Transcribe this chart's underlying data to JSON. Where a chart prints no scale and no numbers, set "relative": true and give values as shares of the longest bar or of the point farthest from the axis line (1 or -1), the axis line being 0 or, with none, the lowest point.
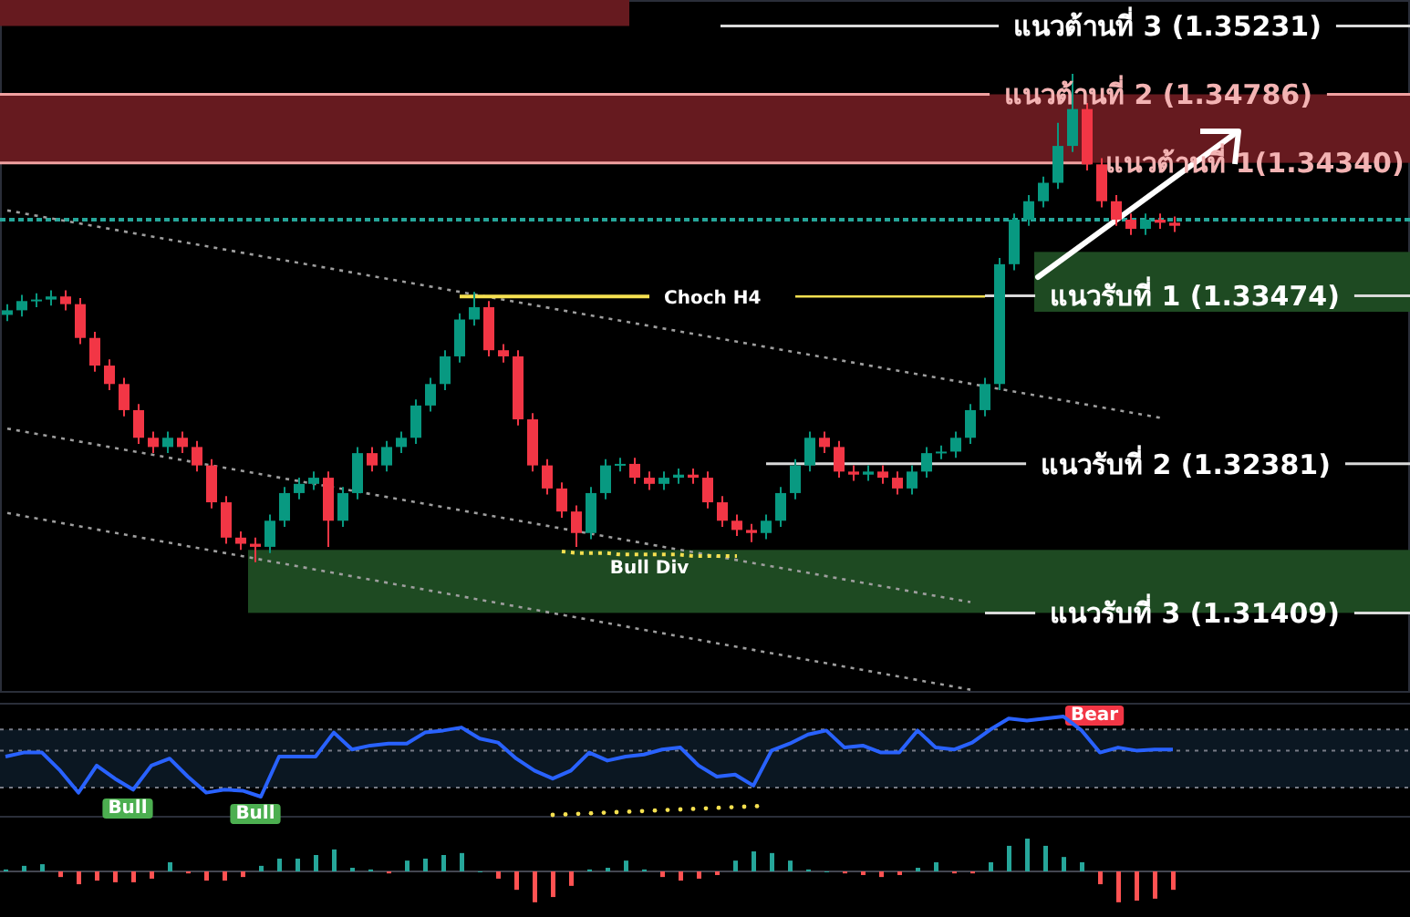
{
  "chart_data": [
    {
      "type": "candlestick",
      "categories": [
        null,
        null,
        null,
        null,
        null,
        null,
        null,
        null,
        null,
        null,
        null,
        null,
        null,
        null,
        null,
        null,
        null,
        null,
        null,
        null,
        null,
        null,
        null,
        null,
        null,
        null,
        null,
        null,
        null,
        null,
        null,
        null,
        null,
        null,
        null,
        null,
        null,
        null,
        null,
        null,
        null,
        null,
        null,
        null,
        null,
        null,
        null,
        null,
        null,
        null,
        null,
        null,
        null,
        null,
        null,
        null,
        null,
        null,
        null,
        null,
        null,
        null,
        null,
        null,
        null,
        null,
        null,
        null,
        null,
        null,
        null,
        null,
        null,
        null,
        null,
        null,
        null,
        null,
        null,
        null,
        null
      ],
      "ohlc": [
        [
          1.3335,
          1.3342,
          1.3331,
          1.3338
        ],
        [
          1.3338,
          1.3348,
          1.3334,
          1.3344
        ],
        [
          1.3344,
          1.3349,
          1.334,
          1.3345
        ],
        [
          1.3345,
          1.3351,
          1.3341,
          1.3347
        ],
        [
          1.3347,
          1.3351,
          1.3338,
          1.3342
        ],
        [
          1.3342,
          1.3346,
          1.3316,
          1.332
        ],
        [
          1.332,
          1.3324,
          1.3298,
          1.3302
        ],
        [
          1.3302,
          1.3306,
          1.3286,
          1.329
        ],
        [
          1.329,
          1.3294,
          1.3269,
          1.3273
        ],
        [
          1.3273,
          1.3277,
          1.3251,
          1.3255
        ],
        [
          1.3255,
          1.3259,
          1.3245,
          1.3249
        ],
        [
          1.3249,
          1.3259,
          1.3245,
          1.3255
        ],
        [
          1.3255,
          1.3259,
          1.3245,
          1.3249
        ],
        [
          1.3249,
          1.3253,
          1.3233,
          1.3237
        ],
        [
          1.3237,
          1.3241,
          1.3209,
          1.3213
        ],
        [
          1.3213,
          1.3217,
          1.3186,
          1.319
        ],
        [
          1.319,
          1.3194,
          1.3182,
          1.3186
        ],
        [
          1.3186,
          1.319,
          1.3174,
          1.3184
        ],
        [
          1.3184,
          1.3205,
          1.318,
          1.3201
        ],
        [
          1.3201,
          1.3223,
          1.3197,
          1.3219
        ],
        [
          1.3219,
          1.3229,
          1.3215,
          1.3225
        ],
        [
          1.3225,
          1.3233,
          1.3221,
          1.3229
        ],
        [
          1.3229,
          1.3233,
          1.3184,
          1.3201
        ],
        [
          1.3201,
          1.3223,
          1.3197,
          1.3219
        ],
        [
          1.3219,
          1.3249,
          1.3215,
          1.3245
        ],
        [
          1.3245,
          1.3249,
          1.3233,
          1.3237
        ],
        [
          1.3237,
          1.3253,
          1.3233,
          1.3249
        ],
        [
          1.3249,
          1.3259,
          1.3245,
          1.3255
        ],
        [
          1.3255,
          1.328,
          1.3251,
          1.3276
        ],
        [
          1.3276,
          1.3294,
          1.3272,
          1.329
        ],
        [
          1.329,
          1.3312,
          1.3286,
          1.3308
        ],
        [
          1.3308,
          1.3336,
          1.3304,
          1.3332
        ],
        [
          1.3332,
          1.335,
          1.3328,
          1.334
        ],
        [
          1.334,
          1.3344,
          1.3308,
          1.3312
        ],
        [
          1.3312,
          1.3316,
          1.3304,
          1.3308
        ],
        [
          1.3308,
          1.3312,
          1.3263,
          1.3267
        ],
        [
          1.3267,
          1.3271,
          1.3233,
          1.3237
        ],
        [
          1.3237,
          1.3241,
          1.3218,
          1.3222
        ],
        [
          1.3222,
          1.3226,
          1.3203,
          1.3207
        ],
        [
          1.3207,
          1.3211,
          1.3184,
          1.3193
        ],
        [
          1.3193,
          1.3223,
          1.3189,
          1.3219
        ],
        [
          1.3219,
          1.3241,
          1.3215,
          1.3237
        ],
        [
          1.3237,
          1.3242,
          1.3233,
          1.3238
        ],
        [
          1.3238,
          1.3242,
          1.3225,
          1.3229
        ],
        [
          1.3229,
          1.3233,
          1.3221,
          1.3225
        ],
        [
          1.3225,
          1.3233,
          1.3221,
          1.3229
        ],
        [
          1.3229,
          1.3235,
          1.3225,
          1.3231
        ],
        [
          1.3231,
          1.3235,
          1.3225,
          1.3229
        ],
        [
          1.3229,
          1.3233,
          1.3209,
          1.3213
        ],
        [
          1.3213,
          1.3217,
          1.3197,
          1.3201
        ],
        [
          1.3201,
          1.3205,
          1.3191,
          1.3195
        ],
        [
          1.3195,
          1.3199,
          1.3187,
          1.3193
        ],
        [
          1.3193,
          1.3205,
          1.3189,
          1.3201
        ],
        [
          1.3201,
          1.3223,
          1.3197,
          1.3219
        ],
        [
          1.3219,
          1.3241,
          1.3215,
          1.3237
        ],
        [
          1.3237,
          1.3259,
          1.3233,
          1.3255
        ],
        [
          1.3255,
          1.3259,
          1.3245,
          1.3249
        ],
        [
          1.3249,
          1.3253,
          1.3229,
          1.3233
        ],
        [
          1.3233,
          1.3237,
          1.3227,
          1.3231
        ],
        [
          1.3231,
          1.3237,
          1.3227,
          1.3233
        ],
        [
          1.3233,
          1.3237,
          1.3225,
          1.3229
        ],
        [
          1.3229,
          1.3233,
          1.3218,
          1.3222
        ],
        [
          1.3222,
          1.3237,
          1.3218,
          1.3233
        ],
        [
          1.3233,
          1.3249,
          1.3229,
          1.3245
        ],
        [
          1.3245,
          1.325,
          1.3241,
          1.3246
        ],
        [
          1.3246,
          1.3259,
          1.3242,
          1.3255
        ],
        [
          1.3255,
          1.3277,
          1.3251,
          1.3273
        ],
        [
          1.3273,
          1.3294,
          1.3269,
          1.329
        ],
        [
          1.329,
          1.3372,
          1.3286,
          1.3368
        ],
        [
          1.3368,
          1.3401,
          1.3364,
          1.3397
        ],
        [
          1.3397,
          1.3413,
          1.3393,
          1.3409
        ],
        [
          1.3409,
          1.3425,
          1.3405,
          1.3421
        ],
        [
          1.3421,
          1.346,
          1.3417,
          1.3445
        ],
        [
          1.3445,
          1.3492,
          1.3441,
          1.3469
        ],
        [
          1.3469,
          1.3473,
          1.3429,
          1.3433
        ],
        [
          1.3433,
          1.3437,
          1.3405,
          1.3409
        ],
        [
          1.3409,
          1.3413,
          1.3393,
          1.3397
        ],
        [
          1.3397,
          1.3401,
          1.3387,
          1.3391
        ],
        [
          1.3391,
          1.3401,
          1.3387,
          1.3397
        ],
        [
          1.3397,
          1.3401,
          1.3391,
          1.3395
        ],
        [
          1.3395,
          1.3399,
          1.3389,
          1.3393
        ]
      ],
      "colors": [
        "#089981",
        "#089981",
        "#089981",
        "#089981",
        "#f23645",
        "#f23645",
        "#f23645",
        "#f23645",
        "#f23645",
        "#f23645",
        "#f23645",
        "#089981",
        "#f23645",
        "#f23645",
        "#f23645",
        "#f23645",
        "#f23645",
        "#f23645",
        "#089981",
        "#089981",
        "#089981",
        "#089981",
        "#f23645",
        "#089981",
        "#089981",
        "#f23645",
        "#089981",
        "#089981",
        "#089981",
        "#089981",
        "#089981",
        "#089981",
        "#089981",
        "#f23645",
        "#f23645",
        "#f23645",
        "#f23645",
        "#f23645",
        "#f23645",
        "#f23645",
        "#089981",
        "#089981",
        "#089981",
        "#f23645",
        "#f23645",
        "#089981",
        "#089981",
        "#f23645",
        "#f23645",
        "#f23645",
        "#f23645",
        "#f23645",
        "#089981",
        "#089981",
        "#089981",
        "#089981",
        "#f23645",
        "#f23645",
        "#f23645",
        "#089981",
        "#f23645",
        "#f23645",
        "#089981",
        "#089981",
        "#089981",
        "#089981",
        "#089981",
        "#089981",
        "#089981",
        "#089981",
        "#089981",
        "#089981",
        "#089981",
        "#089981",
        "#f23645",
        "#f23645",
        "#f23645",
        "#f23645",
        "#089981",
        "#f23645",
        "#f23645"
      ],
      "ylim": [
        1.3089,
        1.354
      ],
      "bands": [
        {
          "axis": "y",
          "from": 1.35231,
          "to": 1.354,
          "color": "#661a1f"
        },
        {
          "axis": "y",
          "from": 1.3434,
          "to": 1.34786,
          "color": "#661a1f"
        },
        {
          "axis": "y",
          "from": 1.3337,
          "to": 1.3376,
          "color": "#1e4a22"
        },
        {
          "axis": "y",
          "from": 1.3141,
          "to": 1.3182,
          "color": "#1e4a22"
        }
      ],
      "ref_lines": [
        {
          "axis": "y",
          "value": 1.35231,
          "label": "แนวต้านที่ 3 (1.35231)",
          "color": "#d9d9d9"
        },
        {
          "axis": "y",
          "value": 1.34786,
          "label": "แนวต้านที่ 2 (1.34786)",
          "color": "#f0a0a0"
        },
        {
          "axis": "y",
          "value": 1.3434,
          "label": "แนวต้านที่ 1(1.34340)",
          "color": "#f0a0a0"
        },
        {
          "axis": "y",
          "value": 1.33474,
          "label": "แนวรับที่ 1 (1.33474)",
          "color": "#d9d9d9"
        },
        {
          "axis": "y",
          "value": 1.32381,
          "label": "แนวรับที่ 2 (1.32381)",
          "color": "#d9d9d9"
        },
        {
          "axis": "y",
          "value": 1.31409,
          "label": "แนวรับที่ 3 (1.31409)",
          "color": "#d9d9d9"
        },
        {
          "axis": "y",
          "value": 1.3397,
          "label": null,
          "color": "#26a69a",
          "line_style": "dotted"
        }
      ],
      "series": [
        {
          "type": "line",
          "color": "#9e9e9e",
          "line_style": "dotted",
          "values": [
            1.3403,
            null,
            null,
            null,
            null,
            null,
            null,
            null,
            null,
            null,
            null,
            null,
            null,
            null,
            null,
            null,
            null,
            null,
            null,
            null,
            null,
            null,
            null,
            null,
            null,
            null,
            null,
            null,
            null,
            null,
            null,
            null,
            null,
            null,
            null,
            null,
            null,
            null,
            null,
            null,
            null,
            null,
            null,
            null,
            null,
            null,
            null,
            null,
            null,
            null,
            null,
            null,
            null,
            null,
            null,
            null,
            null,
            null,
            null,
            null,
            null,
            null,
            null,
            null,
            null,
            null,
            null,
            null,
            null,
            null,
            null,
            null,
            null,
            null,
            null,
            null,
            null,
            null,
            null,
            1.3268,
            null
          ]
        },
        {
          "type": "line",
          "color": "#9e9e9e",
          "line_style": "dotted",
          "values": [
            1.3261,
            null,
            null,
            null,
            null,
            null,
            null,
            null,
            null,
            null,
            null,
            null,
            null,
            null,
            null,
            null,
            null,
            null,
            null,
            null,
            null,
            null,
            null,
            null,
            null,
            null,
            null,
            null,
            null,
            null,
            null,
            null,
            null,
            null,
            null,
            null,
            null,
            null,
            null,
            null,
            null,
            null,
            null,
            null,
            null,
            null,
            null,
            null,
            null,
            null,
            null,
            null,
            null,
            null,
            null,
            null,
            null,
            null,
            null,
            null,
            null,
            null,
            null,
            null,
            null,
            null,
            1.3148,
            null,
            null,
            null,
            null,
            null,
            null,
            null,
            null,
            null,
            null,
            null,
            null,
            null,
            null
          ]
        },
        {
          "type": "line",
          "color": "#9e9e9e",
          "line_style": "dotted",
          "values": [
            1.3206,
            null,
            null,
            null,
            null,
            null,
            null,
            null,
            null,
            null,
            null,
            null,
            null,
            null,
            null,
            null,
            null,
            null,
            null,
            null,
            null,
            null,
            null,
            null,
            null,
            null,
            null,
            null,
            null,
            null,
            null,
            null,
            null,
            null,
            null,
            null,
            null,
            null,
            null,
            null,
            null,
            null,
            null,
            null,
            null,
            null,
            null,
            null,
            null,
            null,
            null,
            null,
            null,
            null,
            null,
            null,
            null,
            null,
            null,
            null,
            null,
            null,
            null,
            null,
            null,
            null,
            1.3091,
            null,
            null,
            null,
            null,
            null,
            null,
            null,
            null,
            null,
            null,
            null,
            null,
            null,
            null
          ]
        },
        {
          "type": "line",
          "name": "Bull Div",
          "color": "#f5e050",
          "line_style": "dotted",
          "values": [
            null,
            null,
            null,
            null,
            null,
            null,
            null,
            null,
            null,
            null,
            null,
            null,
            null,
            null,
            null,
            null,
            null,
            null,
            null,
            null,
            null,
            null,
            null,
            null,
            null,
            null,
            null,
            null,
            null,
            null,
            null,
            null,
            null,
            null,
            null,
            null,
            null,
            null,
            1.3181,
            1.318,
            1.318,
            1.318,
            1.3179,
            1.3179,
            1.3179,
            1.3179,
            1.3179,
            1.3178,
            1.3178,
            1.3178,
            1.3178,
            null,
            null,
            null,
            null,
            null,
            null,
            null,
            null,
            null,
            null,
            null,
            null,
            null,
            null,
            null,
            null,
            null,
            null,
            null,
            null,
            null,
            null,
            null,
            null,
            null,
            null,
            null,
            null,
            null,
            null
          ]
        },
        {
          "type": "line",
          "name": "Choch H4",
          "color": "#f5e050",
          "values": [
            null,
            null,
            null,
            null,
            null,
            null,
            null,
            null,
            null,
            null,
            null,
            null,
            null,
            null,
            null,
            null,
            null,
            null,
            null,
            null,
            null,
            null,
            null,
            null,
            null,
            null,
            null,
            null,
            null,
            null,
            null,
            1.3347,
            1.3347,
            1.3347,
            1.3347,
            1.3347,
            1.3347,
            1.3347,
            1.3347,
            1.3347,
            1.3347,
            1.3347,
            1.3347,
            1.3347,
            1.3347,
            null,
            null,
            null,
            null,
            null,
            null,
            null,
            null,
            null,
            null,
            null,
            null,
            null,
            null,
            null,
            null,
            null,
            null,
            null,
            null,
            null,
            null,
            null,
            null,
            null,
            null,
            null,
            null,
            null,
            null,
            null,
            null,
            null,
            null,
            null,
            null
          ]
        },
        {
          "type": "line",
          "color": "#f5e050",
          "values": [
            null,
            null,
            null,
            null,
            null,
            null,
            null,
            null,
            null,
            null,
            null,
            null,
            null,
            null,
            null,
            null,
            null,
            null,
            null,
            null,
            null,
            null,
            null,
            null,
            null,
            null,
            null,
            null,
            null,
            null,
            null,
            null,
            null,
            null,
            null,
            null,
            null,
            null,
            null,
            null,
            null,
            null,
            null,
            null,
            null,
            null,
            null,
            null,
            null,
            null,
            null,
            null,
            null,
            null,
            1.3347,
            1.3347,
            1.3347,
            1.3347,
            1.3347,
            1.3347,
            1.3347,
            1.3347,
            1.3347,
            1.3347,
            1.3347,
            1.3347,
            1.3347,
            1.3347,
            null,
            null,
            null,
            null,
            null,
            null,
            null,
            null,
            null,
            null,
            null,
            null,
            null
          ]
        }
      ]
    },
    {
      "type": "line",
      "relative": true,
      "categories": [
        null,
        null,
        null,
        null,
        null,
        null,
        null,
        null,
        null,
        null,
        null,
        null,
        null,
        null,
        null,
        null,
        null,
        null,
        null,
        null,
        null,
        null,
        null,
        null,
        null,
        null,
        null,
        null,
        null,
        null,
        null,
        null,
        null,
        null,
        null,
        null,
        null,
        null,
        null,
        null,
        null,
        null,
        null,
        null,
        null,
        null,
        null,
        null,
        null,
        null,
        null,
        null,
        null,
        null,
        null,
        null,
        null,
        null,
        null,
        null,
        null,
        null,
        null,
        null,
        null
      ],
      "series": [
        {
          "color": "#2962ff",
          "values": [
            0.6,
            0.64,
            0.64,
            0.46,
            0.24,
            0.51,
            0.38,
            0.27,
            0.51,
            0.58,
            0.4,
            0.24,
            0.27,
            0.26,
            0.2,
            0.6,
            0.6,
            0.6,
            0.84,
            0.67,
            0.71,
            0.73,
            0.73,
            0.84,
            0.86,
            0.89,
            0.78,
            0.74,
            0.58,
            0.46,
            0.38,
            0.46,
            0.64,
            0.56,
            0.6,
            0.62,
            0.67,
            0.69,
            0.51,
            0.4,
            0.42,
            0.31,
            0.66,
            0.73,
            0.82,
            0.86,
            0.69,
            0.71,
            0.64,
            0.64,
            0.86,
            0.69,
            0.67,
            0.74,
            0.87,
            0.98,
            0.96,
            0.98,
            1,
            0.86,
            0.64,
            0.69,
            0.66,
            0.67,
            0.67
          ]
        }
      ],
      "bands": [
        {
          "axis": "y",
          "from": 0.29,
          "to": 0.87,
          "color": "#0b1722"
        }
      ],
      "ref_lines": [
        {
          "axis": "y",
          "value": 0.87,
          "color": "#787b86",
          "line_style": "dotted"
        },
        {
          "axis": "y",
          "value": 0.66,
          "color": "#787b86",
          "line_style": "dotted"
        },
        {
          "axis": "y",
          "value": 0.29,
          "color": "#787b86",
          "line_style": "dotted"
        }
      ],
      "annotations": [
        "Bull",
        "Bull",
        "Bear"
      ]
    },
    {
      "type": "bar",
      "relative": true,
      "categories": [
        null,
        null,
        null,
        null,
        null,
        null,
        null,
        null,
        null,
        null,
        null,
        null,
        null,
        null,
        null,
        null,
        null,
        null,
        null,
        null,
        null,
        null,
        null,
        null,
        null,
        null,
        null,
        null,
        null,
        null,
        null,
        null,
        null,
        null,
        null,
        null,
        null,
        null,
        null,
        null,
        null,
        null,
        null,
        null,
        null,
        null,
        null,
        null,
        null,
        null,
        null,
        null,
        null,
        null,
        null,
        null,
        null,
        null,
        null,
        null,
        null,
        null,
        null,
        null,
        null
      ],
      "values": [
        0.06,
        0.17,
        0.22,
        -0.17,
        -0.39,
        -0.28,
        -0.33,
        -0.33,
        -0.22,
        0.28,
        -0.06,
        -0.28,
        -0.28,
        -0.17,
        0.17,
        0.39,
        0.39,
        0.5,
        0.67,
        0.11,
        0.06,
        -0.06,
        0.33,
        0.39,
        0.5,
        0.56,
        0,
        -0.22,
        -0.56,
        -0.94,
        -0.78,
        -0.44,
        0.06,
        0.11,
        0.33,
        0.06,
        -0.17,
        -0.28,
        -0.22,
        -0.11,
        0.33,
        0.61,
        0.56,
        0.33,
        0.06,
        0,
        -0.06,
        -0.11,
        -0.17,
        -0.11,
        0.11,
        0.28,
        -0.06,
        -0.06,
        0.28,
        0.78,
        1,
        0.78,
        0.44,
        0.28,
        -0.39,
        -0.94,
        -0.89,
        -0.83,
        -0.56
      ],
      "colors": [
        "#26a69a",
        "#26a69a",
        "#26a69a",
        "#ff5252",
        "#ff5252",
        "#ff5252",
        "#ff5252",
        "#ff5252",
        "#ff5252",
        "#26a69a",
        "#ff5252",
        "#ff5252",
        "#ff5252",
        "#ff5252",
        "#26a69a",
        "#26a69a",
        "#26a69a",
        "#26a69a",
        "#26a69a",
        "#26a69a",
        "#26a69a",
        "#ff5252",
        "#26a69a",
        "#26a69a",
        "#26a69a",
        "#26a69a",
        "#26a69a",
        "#ff5252",
        "#ff5252",
        "#ff5252",
        "#ff5252",
        "#ff5252",
        "#26a69a",
        "#26a69a",
        "#26a69a",
        "#26a69a",
        "#ff5252",
        "#ff5252",
        "#ff5252",
        "#ff5252",
        "#26a69a",
        "#26a69a",
        "#26a69a",
        "#26a69a",
        "#26a69a",
        "#26a69a",
        "#ff5252",
        "#ff5252",
        "#ff5252",
        "#ff5252",
        "#26a69a",
        "#26a69a",
        "#ff5252",
        "#ff5252",
        "#26a69a",
        "#26a69a",
        "#26a69a",
        "#26a69a",
        "#26a69a",
        "#26a69a",
        "#ff5252",
        "#ff5252",
        "#ff5252",
        "#ff5252",
        "#ff5252"
      ]
    }
  ]
}
